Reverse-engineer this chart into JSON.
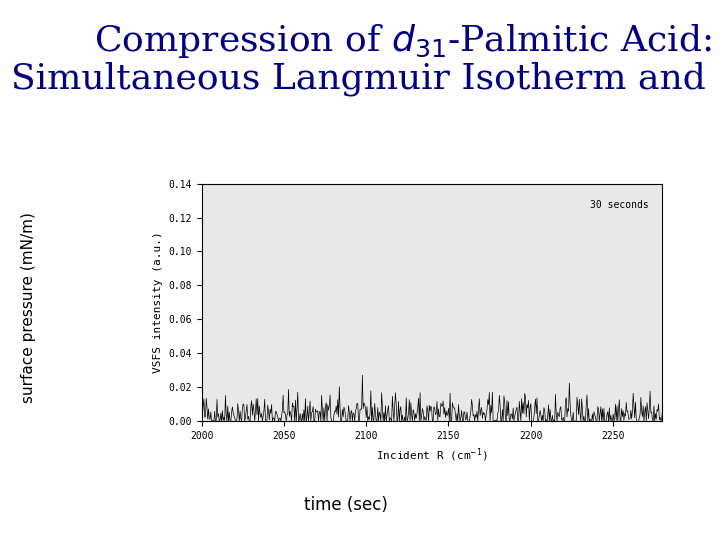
{
  "title_line1": "Compression of $\\mathit{d}_{31}$-Palmitic Acid:",
  "title_line2": "Simultaneous Langmuir Isotherm and SFG",
  "title_color": "#000080",
  "title_fontsize": 26,
  "ylabel_left": "surface pressure (mN/m)",
  "xlabel_bottom": "time (sec)",
  "inner_xlabel": "Incident R (cm$^{-1}$)",
  "inner_ylabel": "VSFS intensity (a.u.)",
  "inner_annotation": "30 seconds",
  "inner_xlim": [
    2000,
    2280
  ],
  "inner_ylim": [
    0.0,
    0.14
  ],
  "inner_yticks": [
    0.0,
    0.02,
    0.04,
    0.06,
    0.08,
    0.1,
    0.12,
    0.14
  ],
  "inner_xticks": [
    2000,
    2050,
    2100,
    2150,
    2200,
    2250
  ],
  "bg_color": "#ffffff",
  "inner_bg": "#e8e8e8",
  "noise_seed": 42,
  "noise_n": 600,
  "noise_mean": 0.004,
  "noise_amp": 0.006
}
